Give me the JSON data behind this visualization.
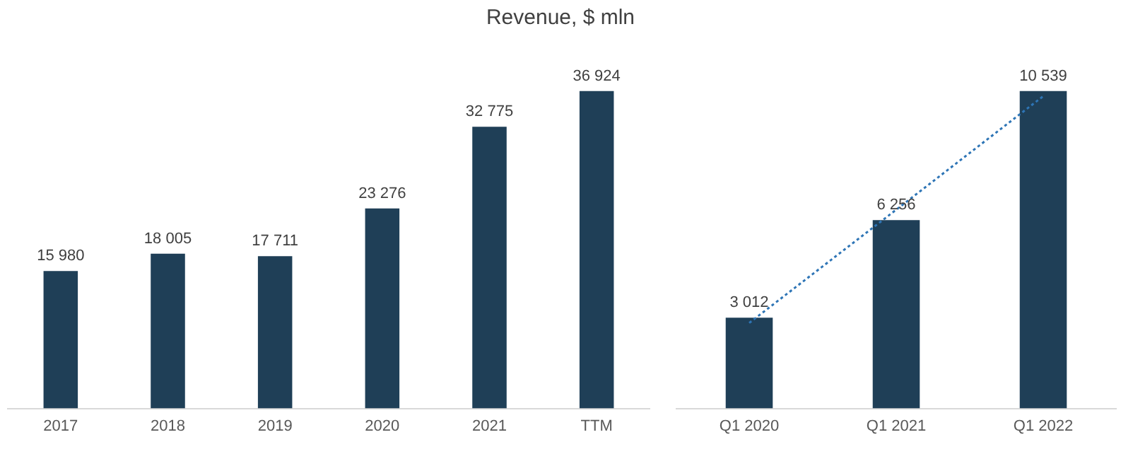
{
  "chart_data": [
    {
      "type": "bar",
      "title": "Revenue, $ mln",
      "categories": [
        "2017",
        "2018",
        "2019",
        "2020",
        "2021",
        "TTM"
      ],
      "color": "#1f3f57",
      "values": [
        15980,
        18005,
        17711,
        23276,
        32775,
        36924
      ],
      "value_labels": [
        "15 980",
        "18 005",
        "17 711",
        "23 276",
        "32 775",
        "36 924"
      ],
      "grid": false,
      "legend": false
    },
    {
      "type": "bar",
      "categories": [
        "Q1 2020",
        "Q1 2021",
        "Q1 2022"
      ],
      "grid": false,
      "legend": false,
      "series": [
        {
          "type": "bar",
          "color": "#1f3f57",
          "values": [
            3012,
            6256,
            10539
          ],
          "value_labels": [
            "3 012",
            "6 256",
            "10 539"
          ]
        },
        {
          "type": "line",
          "color": "#2e75b6",
          "values": [
            2840,
            6600,
            10370
          ],
          "marker": "none",
          "line_style": "dotted"
        }
      ]
    }
  ]
}
